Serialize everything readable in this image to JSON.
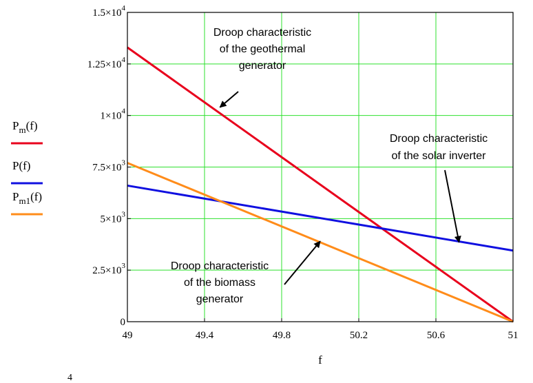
{
  "chart_data": {
    "type": "line",
    "xlabel": "f",
    "xlim": [
      49,
      51
    ],
    "ylim": [
      0,
      15000
    ],
    "x_ticks": [
      49,
      49.4,
      49.8,
      50.2,
      50.6,
      51
    ],
    "x_tick_labels": [
      "49",
      "49.4",
      "49.8",
      "50.2",
      "50.6",
      "51"
    ],
    "y_ticks": [
      0,
      2500,
      5000,
      7500,
      10000,
      12500,
      15000
    ],
    "y_tick_labels": [
      {
        "mantissa": "0",
        "exp": ""
      },
      {
        "mantissa": "2.5×10",
        "exp": "3"
      },
      {
        "mantissa": "5×10",
        "exp": "3"
      },
      {
        "mantissa": "7.5×10",
        "exp": "3"
      },
      {
        "mantissa": "1×10",
        "exp": "4"
      },
      {
        "mantissa": "1.25×10",
        "exp": "4"
      },
      {
        "mantissa": "1.5×10",
        "exp": "4"
      }
    ],
    "grid": true,
    "legend_position": "left",
    "series": [
      {
        "name": "Pm(f)",
        "base": "P",
        "sub": "m",
        "suffix": "(f)",
        "color": "#e8001c",
        "x": [
          49,
          51
        ],
        "y": [
          13300,
          0
        ]
      },
      {
        "name": "P(f)",
        "base": "P",
        "sub": "",
        "suffix": "(f)",
        "color": "#1010e0",
        "x": [
          49,
          51
        ],
        "y": [
          6600,
          3450
        ]
      },
      {
        "name": "Pm1(f)",
        "base": "P",
        "sub": "m1",
        "suffix": "(f)",
        "color": "#ff8c1a",
        "x": [
          49,
          51
        ],
        "y": [
          7700,
          0
        ]
      }
    ],
    "annotations": [
      {
        "lines": [
          "Droop characteristic",
          "of the geothermal",
          "generator"
        ],
        "target_x": 49.48,
        "target_y": 10400
      },
      {
        "lines": [
          "Droop characteristic",
          "of the solar inverter"
        ],
        "target_x": 50.72,
        "target_y": 3850
      },
      {
        "lines": [
          "Droop characteristic",
          "of the biomass",
          "generator"
        ],
        "target_x": 50.0,
        "target_y": 3900
      }
    ]
  },
  "page_fragment": {
    "text": "4"
  }
}
